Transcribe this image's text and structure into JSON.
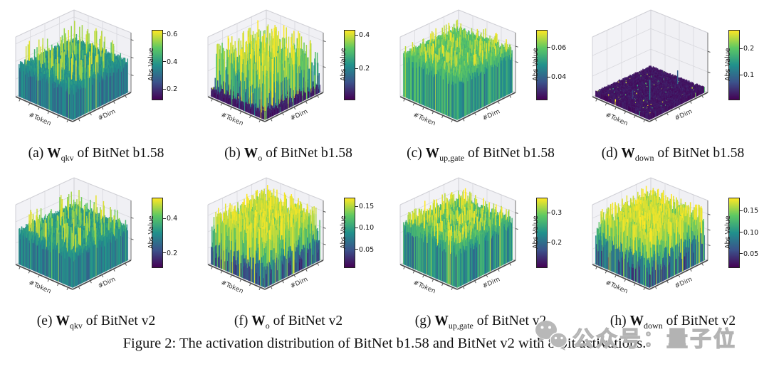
{
  "figure_caption": "Figure 2: The activation distribution of BitNet b1.58 and BitNet v2 with 8-bit activations.",
  "watermark": {
    "icon": "wechat-icon",
    "text": "公众号：量子位"
  },
  "colors": {
    "page_background": "#ffffff",
    "viridis_stops": [
      "#440154",
      "#3b528b",
      "#21908c",
      "#5dc863",
      "#fde725"
    ],
    "pane": "#f2f2f6",
    "grid": "#d9d9de",
    "watermark": "#b3b3b3"
  },
  "chart_data": [
    {
      "id": "a",
      "type": "3d_surface",
      "xlabel": "#Token",
      "ylabel": "#Dim",
      "caption": {
        "index": "(a)",
        "matrix": "W",
        "subscript": "qkv",
        "suffix": "of BitNet b1.58"
      },
      "colorbar": {
        "label": "Abs Value",
        "colormap": "viridis",
        "vmin": 0.13,
        "vmax": 0.63,
        "ticks": [
          0.2,
          0.4,
          0.6
        ],
        "tick_labels": [
          "0.2",
          "0.4",
          "0.6"
        ]
      },
      "surface": {
        "profile": "dense mid-height green carpet with sparse tall spikes",
        "base": 0.27,
        "noise": 0.13,
        "spike_prob": 0.02,
        "spike_min": 0.45,
        "spike_max": 0.62,
        "speckle_prob": 0,
        "seed": 101
      }
    },
    {
      "id": "b",
      "type": "3d_surface",
      "xlabel": "#Token",
      "ylabel": "#Dim",
      "caption": {
        "index": "(b)",
        "matrix": "W",
        "subscript": "o",
        "suffix": "of BitNet b1.58"
      },
      "colorbar": {
        "label": "Abs Value",
        "colormap": "viridis",
        "vmin": 0.02,
        "vmax": 0.43,
        "ticks": [
          0.2,
          0.4
        ],
        "tick_labels": [
          "0.2",
          "0.4"
        ]
      },
      "surface": {
        "profile": "dark purple floor with many tall green-yellow outlier spikes",
        "base": 0.03,
        "noise": 0.04,
        "spike_prob": 0.1,
        "spike_min": 0.12,
        "spike_max": 0.43,
        "speckle_prob": 0.03,
        "seed": 202
      }
    },
    {
      "id": "c",
      "type": "3d_surface",
      "xlabel": "#Token",
      "ylabel": "#Dim",
      "caption": {
        "index": "(c)",
        "matrix": "W",
        "subscript": "up,gate",
        "suffix": "of BitNet b1.58"
      },
      "colorbar": {
        "label": "Abs Value",
        "colormap": "viridis",
        "vmin": 0.025,
        "vmax": 0.072,
        "ticks": [
          0.04,
          0.06
        ],
        "tick_labels": [
          "0.04",
          "0.06"
        ]
      },
      "surface": {
        "profile": "thick uniform green carpet",
        "base": 0.042,
        "noise": 0.018,
        "spike_prob": 0.03,
        "spike_min": 0.06,
        "spike_max": 0.071,
        "speckle_prob": 0,
        "seed": 303
      }
    },
    {
      "id": "d",
      "type": "3d_surface",
      "xlabel": "#Token",
      "ylabel": "#Dim",
      "caption": {
        "index": "(d)",
        "matrix": "W",
        "subscript": "down",
        "suffix": "of BitNet b1.58"
      },
      "colorbar": {
        "label": "Abs Value",
        "colormap": "viridis",
        "vmin": 0.01,
        "vmax": 0.27,
        "ticks": [
          0.1,
          0.2
        ],
        "tick_labels": [
          "0.1",
          "0.2"
        ]
      },
      "surface": {
        "profile": "flat dark purple floor, a few tiny teal spikes, yellow speckles",
        "base": 0.018,
        "noise": 0.012,
        "spike_prob": 0.0008,
        "spike_min": 0.05,
        "spike_max": 0.14,
        "speckle_prob": 0.02,
        "seed": 404
      }
    },
    {
      "id": "e",
      "type": "3d_surface",
      "xlabel": "#Token",
      "ylabel": "#Dim",
      "caption": {
        "index": "(e)",
        "matrix": "W",
        "subscript": "qkv",
        "suffix": "of BitNet v2"
      },
      "colorbar": {
        "label": "Abs Value",
        "colormap": "viridis",
        "vmin": 0.12,
        "vmax": 0.52,
        "ticks": [
          0.2,
          0.4
        ],
        "tick_labels": [
          "0.2",
          "0.4"
        ]
      },
      "surface": {
        "profile": "low dense green carpet, mild spikes",
        "base": 0.24,
        "noise": 0.11,
        "spike_prob": 0.02,
        "spike_min": 0.38,
        "spike_max": 0.5,
        "speckle_prob": 0,
        "seed": 505
      }
    },
    {
      "id": "f",
      "type": "3d_surface",
      "xlabel": "#Token",
      "ylabel": "#Dim",
      "caption": {
        "index": "(f)",
        "matrix": "W",
        "subscript": "o",
        "suffix": "of BitNet v2"
      },
      "colorbar": {
        "label": "Abs Value",
        "colormap": "viridis",
        "vmin": 0.01,
        "vmax": 0.17,
        "ticks": [
          0.05,
          0.1,
          0.15
        ],
        "tick_labels": [
          "0.05",
          "0.10",
          "0.15"
        ]
      },
      "surface": {
        "profile": "dense spiky teal-green field over dark floor",
        "base": 0.025,
        "noise": 0.05,
        "spike_prob": 0.25,
        "spike_min": 0.07,
        "spike_max": 0.17,
        "speckle_prob": 0,
        "seed": 606
      }
    },
    {
      "id": "g",
      "type": "3d_surface",
      "xlabel": "#Token",
      "ylabel": "#Dim",
      "caption": {
        "index": "(g)",
        "matrix": "W",
        "subscript": "up,gate",
        "suffix": "of BitNet v2"
      },
      "colorbar": {
        "label": "Abs Value",
        "colormap": "viridis",
        "vmin": 0.12,
        "vmax": 0.35,
        "ticks": [
          0.2,
          0.3
        ],
        "tick_labels": [
          "0.2",
          "0.3"
        ]
      },
      "surface": {
        "profile": "dense green carpet with frequent short spikes",
        "base": 0.19,
        "noise": 0.09,
        "spike_prob": 0.05,
        "spike_min": 0.28,
        "spike_max": 0.35,
        "speckle_prob": 0,
        "seed": 707
      }
    },
    {
      "id": "h",
      "type": "3d_surface",
      "xlabel": "#Token",
      "ylabel": "#Dim",
      "caption": {
        "index": "(h)",
        "matrix": "W",
        "subscript": "down",
        "suffix": "of BitNet v2"
      },
      "colorbar": {
        "label": "Abs Value",
        "colormap": "viridis",
        "vmin": 0.02,
        "vmax": 0.18,
        "ticks": [
          0.05,
          0.1,
          0.15
        ],
        "tick_labels": [
          "0.05",
          "0.10",
          "0.15"
        ]
      },
      "surface": {
        "profile": "very dense tall teal spiky carpet",
        "base": 0.04,
        "noise": 0.06,
        "spike_prob": 0.3,
        "spike_min": 0.08,
        "spike_max": 0.18,
        "speckle_prob": 0,
        "seed": 808
      }
    }
  ]
}
